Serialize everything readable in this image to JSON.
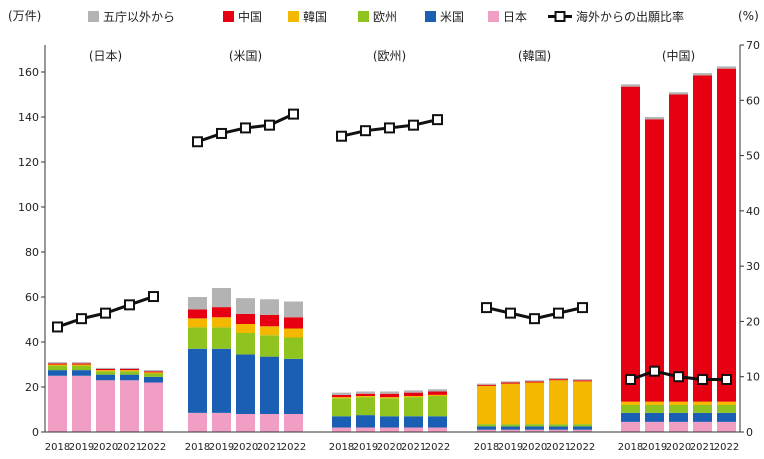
{
  "chart_data": {
    "type": "bar",
    "stacked": true,
    "left_axis_unit": "(万件)",
    "right_axis_unit": "(%)",
    "ylim_left": [
      0,
      170
    ],
    "ylim_right": [
      0,
      70
    ],
    "yticks_left": [
      "0",
      "20",
      "40",
      "60",
      "80",
      "100",
      "120",
      "140",
      "160"
    ],
    "yticks_right": [
      "0",
      "10",
      "20",
      "30",
      "40",
      "50",
      "60",
      "70"
    ],
    "years": [
      "2018",
      "2019",
      "2020",
      "2021",
      "2022"
    ],
    "groups": [
      "(日本)",
      "(米国)",
      "(欧州)",
      "(韓国)",
      "(中国)"
    ],
    "stack_order": [
      "japan",
      "us",
      "europe",
      "korea",
      "china",
      "other"
    ],
    "legend": [
      {
        "key": "other",
        "label": "五庁以外から",
        "color": "#b3b3b3"
      },
      {
        "key": "china",
        "label": "中国",
        "color": "#e60012"
      },
      {
        "key": "korea",
        "label": "韓国",
        "color": "#f5b800"
      },
      {
        "key": "europe",
        "label": "欧州",
        "color": "#8fc31f"
      },
      {
        "key": "us",
        "label": "米国",
        "color": "#1b5fb4"
      },
      {
        "key": "japan",
        "label": "日本",
        "color": "#f09ec3"
      }
    ],
    "line_series": {
      "label": "海外からの出願比率",
      "color": "#111111"
    },
    "data": [
      {
        "group": "(日本)",
        "segments": {
          "japan": [
            25,
            25,
            23,
            23,
            22
          ],
          "us": [
            2.5,
            2.5,
            2.5,
            2.5,
            2.5
          ],
          "europe": [
            2,
            2,
            1.5,
            1.5,
            1.5
          ],
          "korea": [
            0.5,
            0.5,
            0.5,
            0.5,
            0.5
          ],
          "china": [
            0.5,
            0.5,
            0.5,
            0.5,
            0.5
          ],
          "other": [
            0.5,
            0.5,
            0.5,
            0.5,
            0.5
          ]
        },
        "overseas_ratio": [
          19,
          20.5,
          21.5,
          23,
          24.5
        ]
      },
      {
        "group": "(米国)",
        "segments": {
          "japan": [
            8.5,
            8.5,
            8,
            8,
            8
          ],
          "us": [
            28.5,
            28.5,
            26.5,
            25.5,
            24.5
          ],
          "europe": [
            9.5,
            9.5,
            9.5,
            9.5,
            9.5
          ],
          "korea": [
            4,
            4.5,
            4,
            4,
            4
          ],
          "china": [
            4,
            4.5,
            4.5,
            5,
            5
          ],
          "other": [
            5.5,
            8.5,
            7,
            7,
            7
          ]
        },
        "overseas_ratio": [
          52.5,
          54,
          55,
          55.5,
          57.5
        ]
      },
      {
        "group": "(欧州)",
        "segments": {
          "japan": [
            2,
            2,
            2,
            2,
            2
          ],
          "us": [
            5,
            5.5,
            5,
            5,
            5
          ],
          "europe": [
            8,
            8,
            8,
            8.5,
            9
          ],
          "korea": [
            0.5,
            0.5,
            0.5,
            0.5,
            0.5
          ],
          "china": [
            1,
            1,
            1.5,
            1.5,
            1.5
          ],
          "other": [
            1,
            1,
            1,
            1,
            1
          ]
        },
        "overseas_ratio": [
          53.5,
          54.5,
          55,
          55.5,
          56.5
        ]
      },
      {
        "group": "(韓国)",
        "segments": {
          "japan": [
            1,
            1,
            1,
            1,
            1
          ],
          "us": [
            1.5,
            1.5,
            1.5,
            1.5,
            1.5
          ],
          "europe": [
            1,
            1,
            1,
            1,
            1
          ],
          "korea": [
            17,
            18,
            18.5,
            19.5,
            19
          ],
          "china": [
            0.5,
            0.5,
            0.5,
            0.5,
            0.5
          ],
          "other": [
            0.5,
            0.5,
            0.5,
            0.5,
            0.5
          ]
        },
        "overseas_ratio": [
          22.5,
          21.5,
          20.5,
          21.5,
          22.5
        ]
      },
      {
        "group": "(中国)",
        "segments": {
          "japan": [
            4.5,
            4.5,
            4.5,
            4.5,
            4.5
          ],
          "us": [
            4,
            4,
            4,
            4,
            4
          ],
          "europe": [
            3.5,
            3.5,
            3.5,
            3.5,
            3.5
          ],
          "korea": [
            1.5,
            1.5,
            1.5,
            1.5,
            1.5
          ],
          "china": [
            140,
            125.5,
            136.5,
            145,
            148
          ],
          "other": [
            1,
            1,
            1,
            1,
            1
          ]
        },
        "overseas_ratio": [
          9.5,
          11,
          10,
          9.5,
          9.5
        ]
      }
    ]
  }
}
